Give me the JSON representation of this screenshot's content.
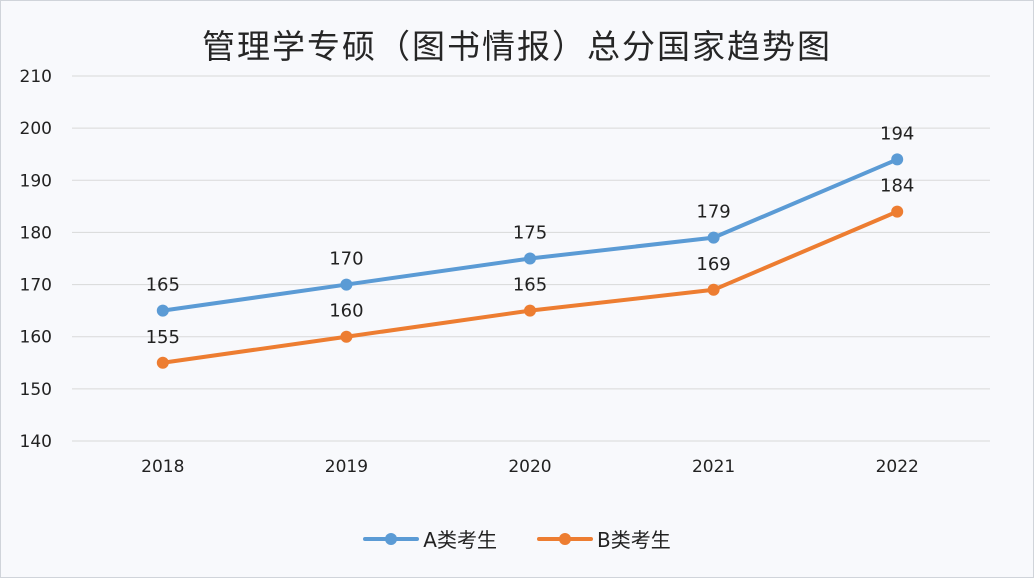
{
  "chart_data": {
    "type": "line",
    "title": "管理学专硕（图书情报）总分国家趋势图",
    "categories": [
      "2018",
      "2019",
      "2020",
      "2021",
      "2022"
    ],
    "series": [
      {
        "name": "A类考生",
        "color": "#5b9bd5",
        "values": [
          165,
          170,
          175,
          179,
          194
        ]
      },
      {
        "name": "B类考生",
        "color": "#ed7d31",
        "values": [
          155,
          160,
          165,
          169,
          184
        ]
      }
    ],
    "yticks": [
      "140",
      "150",
      "160",
      "170",
      "180",
      "190",
      "200",
      "210"
    ],
    "ylim": [
      140,
      210
    ],
    "xlabel": "",
    "ylabel": "",
    "grid": true,
    "legend": "bottom"
  }
}
